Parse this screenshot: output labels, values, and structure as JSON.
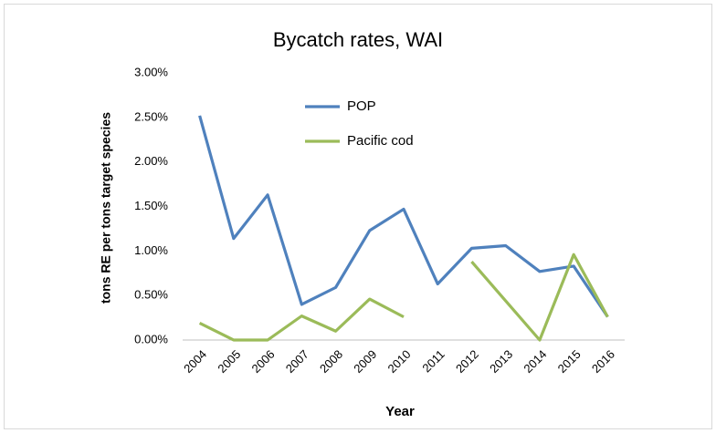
{
  "chart_data": {
    "type": "line",
    "title": "Bycatch rates, WAI",
    "x_label": "Year",
    "y_label": "tons RE per tons target species",
    "categories": [
      "2004",
      "2005",
      "2006",
      "2007",
      "2008",
      "2009",
      "2010",
      "2011",
      "2012",
      "2013",
      "2014",
      "2015",
      "2016"
    ],
    "series": [
      {
        "name": "POP",
        "color": "#4f81bd",
        "values": [
          2.52,
          1.14,
          1.63,
          0.4,
          0.59,
          1.23,
          1.47,
          0.63,
          1.03,
          1.06,
          0.77,
          0.83,
          0.26
        ]
      },
      {
        "name": "Pacific cod",
        "color": "#9bbb59",
        "values": [
          0.19,
          0.0,
          0.0,
          0.27,
          0.1,
          0.46,
          0.26,
          null,
          0.88,
          0.44,
          0.0,
          0.96,
          0.26
        ]
      }
    ],
    "ylim": [
      0,
      3
    ],
    "yticks": [
      {
        "value": 0,
        "label": "0.00%"
      },
      {
        "value": 0.5,
        "label": "0.50%"
      },
      {
        "value": 1,
        "label": "1.00%"
      },
      {
        "value": 1.5,
        "label": "1.50%"
      },
      {
        "value": 2,
        "label": "2.00%"
      },
      {
        "value": 2.5,
        "label": "2.50%"
      },
      {
        "value": 3,
        "label": "3.00%"
      }
    ],
    "grid": false
  }
}
